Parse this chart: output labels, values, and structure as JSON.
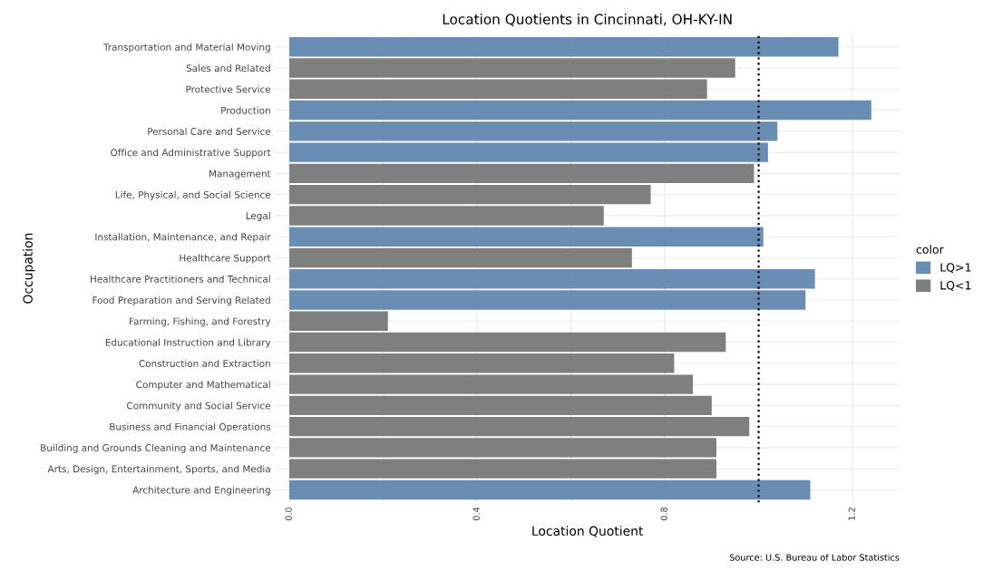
{
  "chart_data": {
    "type": "bar",
    "orientation": "horizontal",
    "title": "Location Quotients in Cincinnati, OH-KY-IN",
    "xlabel": "Location Quotient",
    "ylabel": "Occupation",
    "legend_title": "color",
    "categories": [
      "Transportation and Material Moving",
      "Sales and Related",
      "Protective Service",
      "Production",
      "Personal Care and Service",
      "Office and Administrative Support",
      "Management",
      "Life, Physical, and Social Science",
      "Legal",
      "Installation, Maintenance, and Repair",
      "Healthcare Support",
      "Healthcare Practitioners and Technical",
      "Food Preparation and Serving Related",
      "Farming, Fishing, and Forestry",
      "Educational Instruction and Library",
      "Construction and Extraction",
      "Computer and Mathematical",
      "Community and Social Service",
      "Business and Financial Operations",
      "Building and Grounds Cleaning and Maintenance",
      "Arts, Design, Entertainment, Sports, and Media",
      "Architecture and Engineering"
    ],
    "series": [
      {
        "name": "LQ>1",
        "color": "#6a8db3",
        "values": [
          1.17,
          null,
          null,
          1.24,
          1.04,
          1.02,
          null,
          null,
          null,
          1.01,
          null,
          1.12,
          1.1,
          null,
          null,
          null,
          null,
          null,
          null,
          null,
          null,
          1.11
        ]
      },
      {
        "name": "LQ<1",
        "color": "#7f7f7f",
        "values": [
          null,
          0.95,
          0.89,
          null,
          null,
          null,
          0.99,
          0.77,
          0.67,
          null,
          0.73,
          null,
          null,
          0.21,
          0.93,
          0.82,
          0.86,
          0.9,
          0.98,
          0.91,
          0.91,
          null
        ]
      }
    ],
    "xlim": [
      -0.03,
      1.3
    ],
    "xticks": [
      {
        "value": 0,
        "label": "0.0"
      },
      {
        "value": 0.2,
        "label": null
      },
      0.4,
      {
        "value": 0.6,
        "label": null
      },
      0.8,
      {
        "value": 1.0,
        "label": null
      },
      1.2
    ],
    "ref_lines": [
      {
        "axis": "x",
        "value": 1,
        "color": "#000000",
        "line_style": "dotted"
      }
    ],
    "grid": true,
    "legend": "right",
    "annotations": [
      "Source: U.S. Bureau of Labor Statistics"
    ]
  }
}
